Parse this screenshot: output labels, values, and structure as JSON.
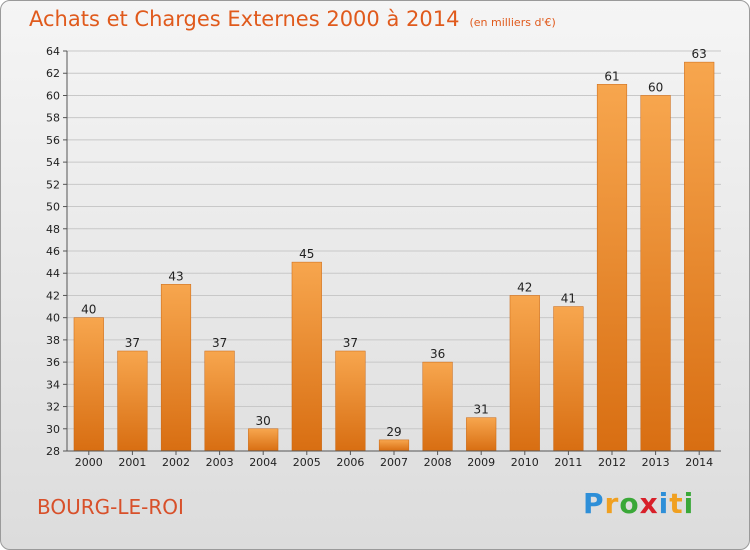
{
  "header": {
    "title": "Achats et Charges Externes 2000 à 2014",
    "unit": "(en milliers d'€)"
  },
  "footer": {
    "place": "BOURG-LE-ROI",
    "brand_letters": [
      "P",
      "r",
      "o",
      "x",
      "i",
      "t",
      "i"
    ],
    "brand_colors": [
      "#2e8fd8",
      "#f0a020",
      "#3aa838",
      "#d8202a",
      "#2e8fd8",
      "#f0a020",
      "#3aa838"
    ]
  },
  "chart_data": {
    "type": "bar",
    "title": "Achats et Charges Externes 2000 à 2014",
    "categories": [
      "2000",
      "2001",
      "2002",
      "2003",
      "2004",
      "2005",
      "2006",
      "2007",
      "2008",
      "2009",
      "2010",
      "2011",
      "2012",
      "2013",
      "2014"
    ],
    "values": [
      40,
      37,
      43,
      37,
      30,
      45,
      37,
      29,
      36,
      31,
      42,
      41,
      61,
      60,
      63
    ],
    "ylim": [
      28,
      64
    ],
    "yticks": [
      28,
      30,
      32,
      34,
      36,
      38,
      40,
      42,
      44,
      46,
      48,
      50,
      52,
      54,
      56,
      58,
      60,
      62,
      64
    ],
    "grid": true,
    "bar_color_light": "#f7a64e",
    "bar_color_dark": "#d86e12"
  }
}
